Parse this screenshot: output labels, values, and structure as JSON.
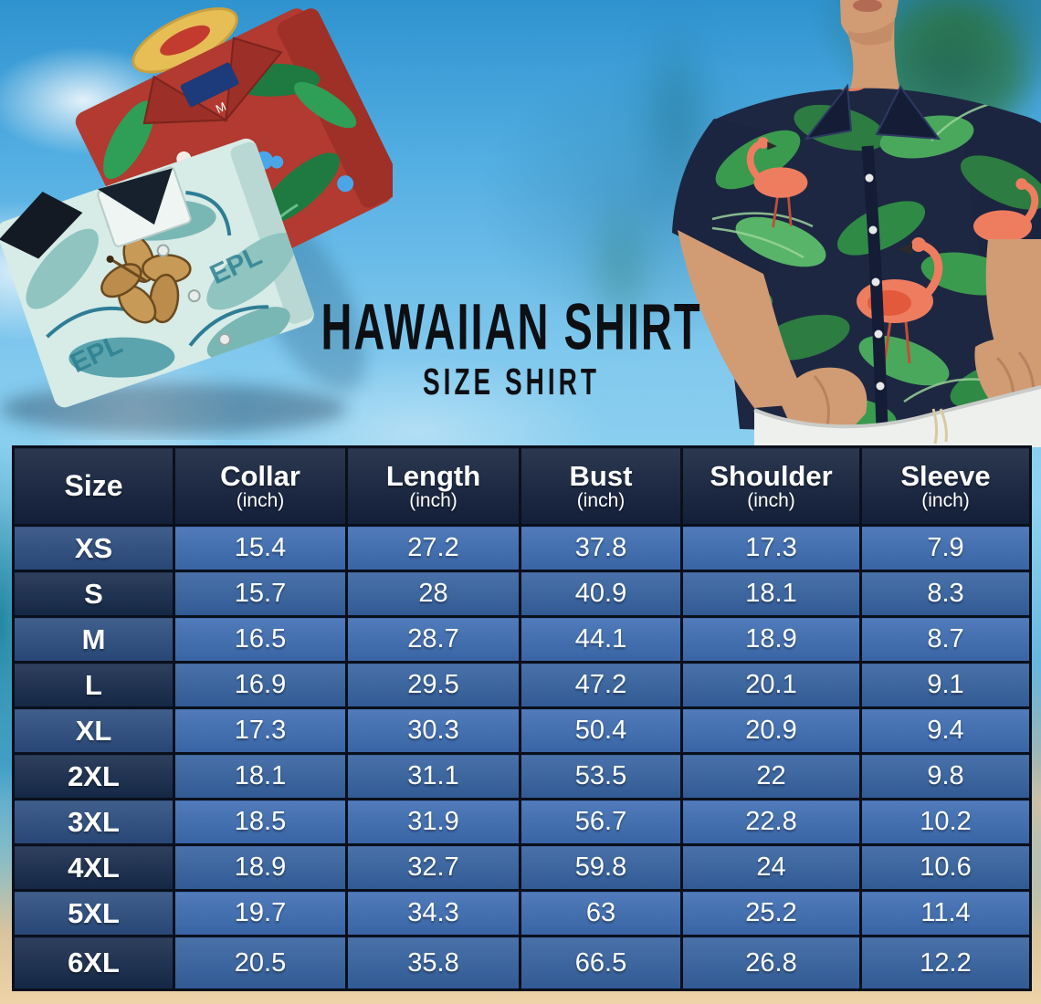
{
  "page": {
    "title": "HAWAIIAN SHIRT",
    "subtitle": "SIZE SHIRT"
  },
  "hero": {
    "red_shirt_size_tag": "M",
    "teal_shirt_print_text": "EPL"
  },
  "chart_data": {
    "type": "table",
    "title": "Hawaiian Shirt Size Chart",
    "columns": [
      {
        "label": "Size",
        "unit": ""
      },
      {
        "label": "Collar",
        "unit": "(inch)"
      },
      {
        "label": "Length",
        "unit": "(inch)"
      },
      {
        "label": "Bust",
        "unit": "(inch)"
      },
      {
        "label": "Shoulder",
        "unit": "(inch)"
      },
      {
        "label": "Sleeve",
        "unit": "(inch)"
      }
    ],
    "rows": [
      {
        "size": "XS",
        "values": [
          "15.4",
          "27.2",
          "37.8",
          "17.3",
          "7.9"
        ]
      },
      {
        "size": "S",
        "values": [
          "15.7",
          "28",
          "40.9",
          "18.1",
          "8.3"
        ]
      },
      {
        "size": "M",
        "values": [
          "16.5",
          "28.7",
          "44.1",
          "18.9",
          "8.7"
        ]
      },
      {
        "size": "L",
        "values": [
          "16.9",
          "29.5",
          "47.2",
          "20.1",
          "9.1"
        ]
      },
      {
        "size": "XL",
        "values": [
          "17.3",
          "30.3",
          "50.4",
          "20.9",
          "9.4"
        ]
      },
      {
        "size": "2XL",
        "values": [
          "18.1",
          "31.1",
          "53.5",
          "22",
          "9.8"
        ]
      },
      {
        "size": "3XL",
        "values": [
          "18.5",
          "31.9",
          "56.7",
          "22.8",
          "10.2"
        ]
      },
      {
        "size": "4XL",
        "values": [
          "18.9",
          "32.7",
          "59.8",
          "24",
          "10.6"
        ]
      },
      {
        "size": "5XL",
        "values": [
          "19.7",
          "34.3",
          "63",
          "25.2",
          "11.4"
        ]
      },
      {
        "size": "6XL",
        "values": [
          "20.5",
          "35.8",
          "66.5",
          "26.8",
          "12.2"
        ]
      }
    ]
  },
  "colors": {
    "header_bg": "#14213c",
    "row_size_light": "#2b4c7e",
    "row_size_dark": "#162a4b",
    "row_value_light": "#3d6cb2",
    "row_value_dark": "#35619f",
    "table_border": "#0a0f1c",
    "title_text": "#0d0f13",
    "sky": "#7ec8ec",
    "sand": "#eed3a8",
    "sea": "#1a8098",
    "red_shirt": "#b23a30",
    "teal_shirt": "#d7ebe7",
    "navy_shirt": "#1d2742",
    "flamingo": "#ee7d60",
    "leaf_green": "#3a9a4e",
    "skin": "#d19b74",
    "pants_white": "#eef0ee"
  }
}
